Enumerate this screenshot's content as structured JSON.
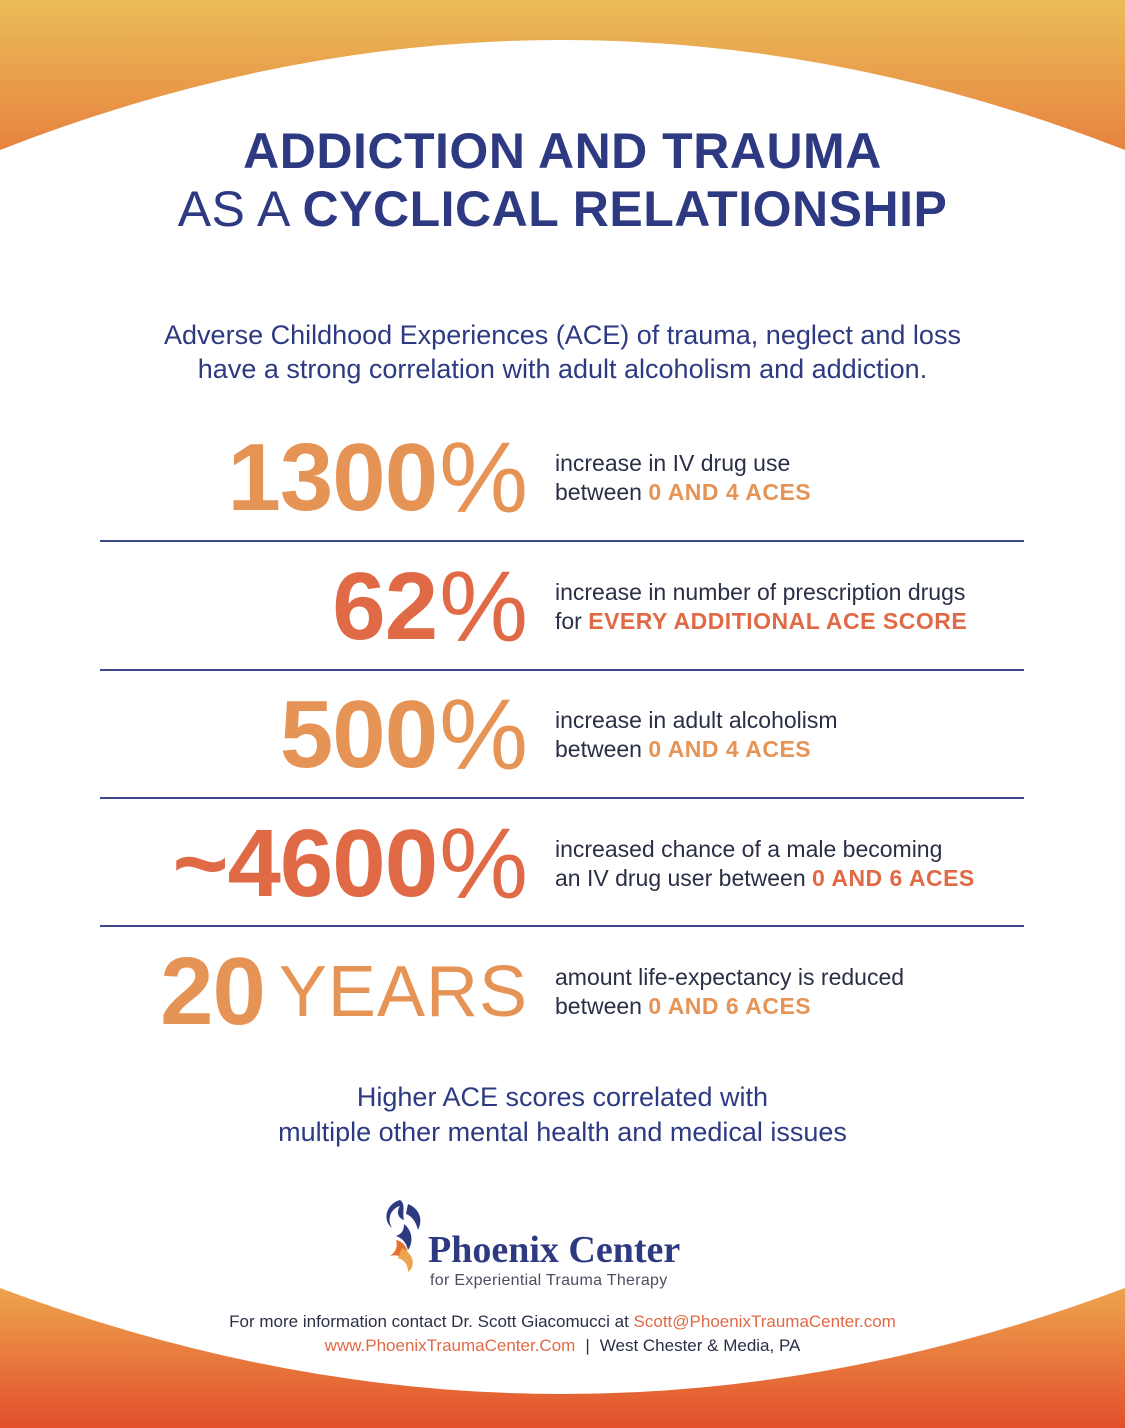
{
  "colors": {
    "navy": "#2d3a82",
    "orange": "#e69356",
    "red_orange": "#df6a45",
    "gradient_top": "#e9b155",
    "gradient_bottom": "#e35a2e"
  },
  "title": {
    "line1": "ADDICTION AND TRAUMA",
    "line2_light": "AS A",
    "line2_bold": "CYCLICAL RELATIONSHIP"
  },
  "intro": {
    "line1": "Adverse Childhood Experiences (ACE) of trauma, neglect and loss",
    "line2": "have a strong correlation with adult alcoholism and addiction."
  },
  "stats": [
    {
      "number": "1300",
      "unit": "%",
      "desc_line1": "increase in IV drug use",
      "desc_line2_prefix": "between ",
      "desc_highlight": "0 AND 4 ACES"
    },
    {
      "number": "62",
      "unit": "%",
      "desc_line1": "increase in number of prescription drugs",
      "desc_line2_prefix": "for ",
      "desc_highlight": "EVERY ADDITIONAL ACE SCORE"
    },
    {
      "number": "500",
      "unit": "%",
      "desc_line1": "increase in adult alcoholism",
      "desc_line2_prefix": "between ",
      "desc_highlight": "0 AND 4 ACES"
    },
    {
      "number": "~4600",
      "unit": "%",
      "desc_line1": "increased chance of a male becoming",
      "desc_line2_prefix": "an IV drug user between ",
      "desc_highlight": "0 AND 6 ACES"
    },
    {
      "number": "20",
      "unit": "YEARS",
      "desc_line1": "amount life-expectancy is reduced",
      "desc_line2_prefix": "between ",
      "desc_highlight": "0 AND 6 ACES"
    }
  ],
  "closing": {
    "line1": "Higher ACE scores correlated with",
    "line2": "multiple other mental health and medical issues"
  },
  "logo": {
    "name": "Phoenix Center",
    "tagline": "for Experiential Trauma Therapy",
    "icon": "phoenix-icon"
  },
  "contact": {
    "prefix": "For more information contact Dr. Scott Giacomucci at ",
    "email": "Scott@PhoenixTraumaCenter.com",
    "website": "www.PhoenixTraumaCenter.Com",
    "separator": "|",
    "location": "West Chester & Media, PA"
  }
}
